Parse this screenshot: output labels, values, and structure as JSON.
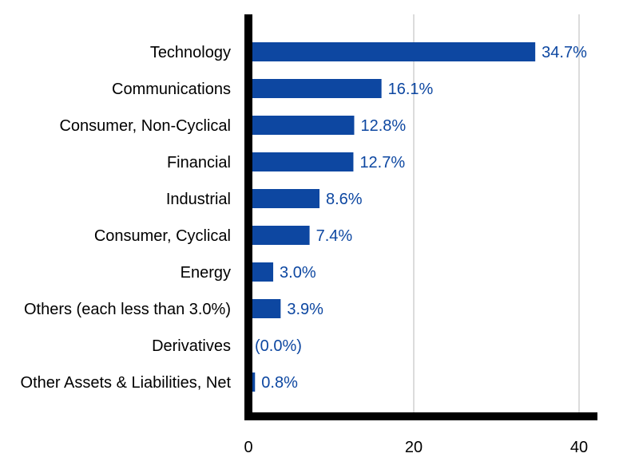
{
  "chart_data": {
    "type": "bar",
    "orientation": "horizontal",
    "categories": [
      "Technology",
      "Communications",
      "Consumer, Non-Cyclical",
      "Financial",
      "Industrial",
      "Consumer, Cyclical",
      "Energy",
      "Others (each less than 3.0%)",
      "Derivatives",
      "Other Assets & Liabilities, Net"
    ],
    "values": [
      34.7,
      16.1,
      12.8,
      12.7,
      8.6,
      7.4,
      3.0,
      3.9,
      0.0,
      0.8
    ],
    "value_labels": [
      "34.7%",
      "16.1%",
      "12.8%",
      "12.7%",
      "8.6%",
      "7.4%",
      "3.0%",
      "3.9%",
      "(0.0%)",
      "0.8%"
    ],
    "xlim": [
      0,
      42
    ],
    "x_ticks": [
      0,
      20,
      40
    ],
    "grid": true,
    "title": "",
    "xlabel": "",
    "ylabel": "",
    "bar_color": "#0d47a1",
    "label_color": "#0d47a1"
  }
}
